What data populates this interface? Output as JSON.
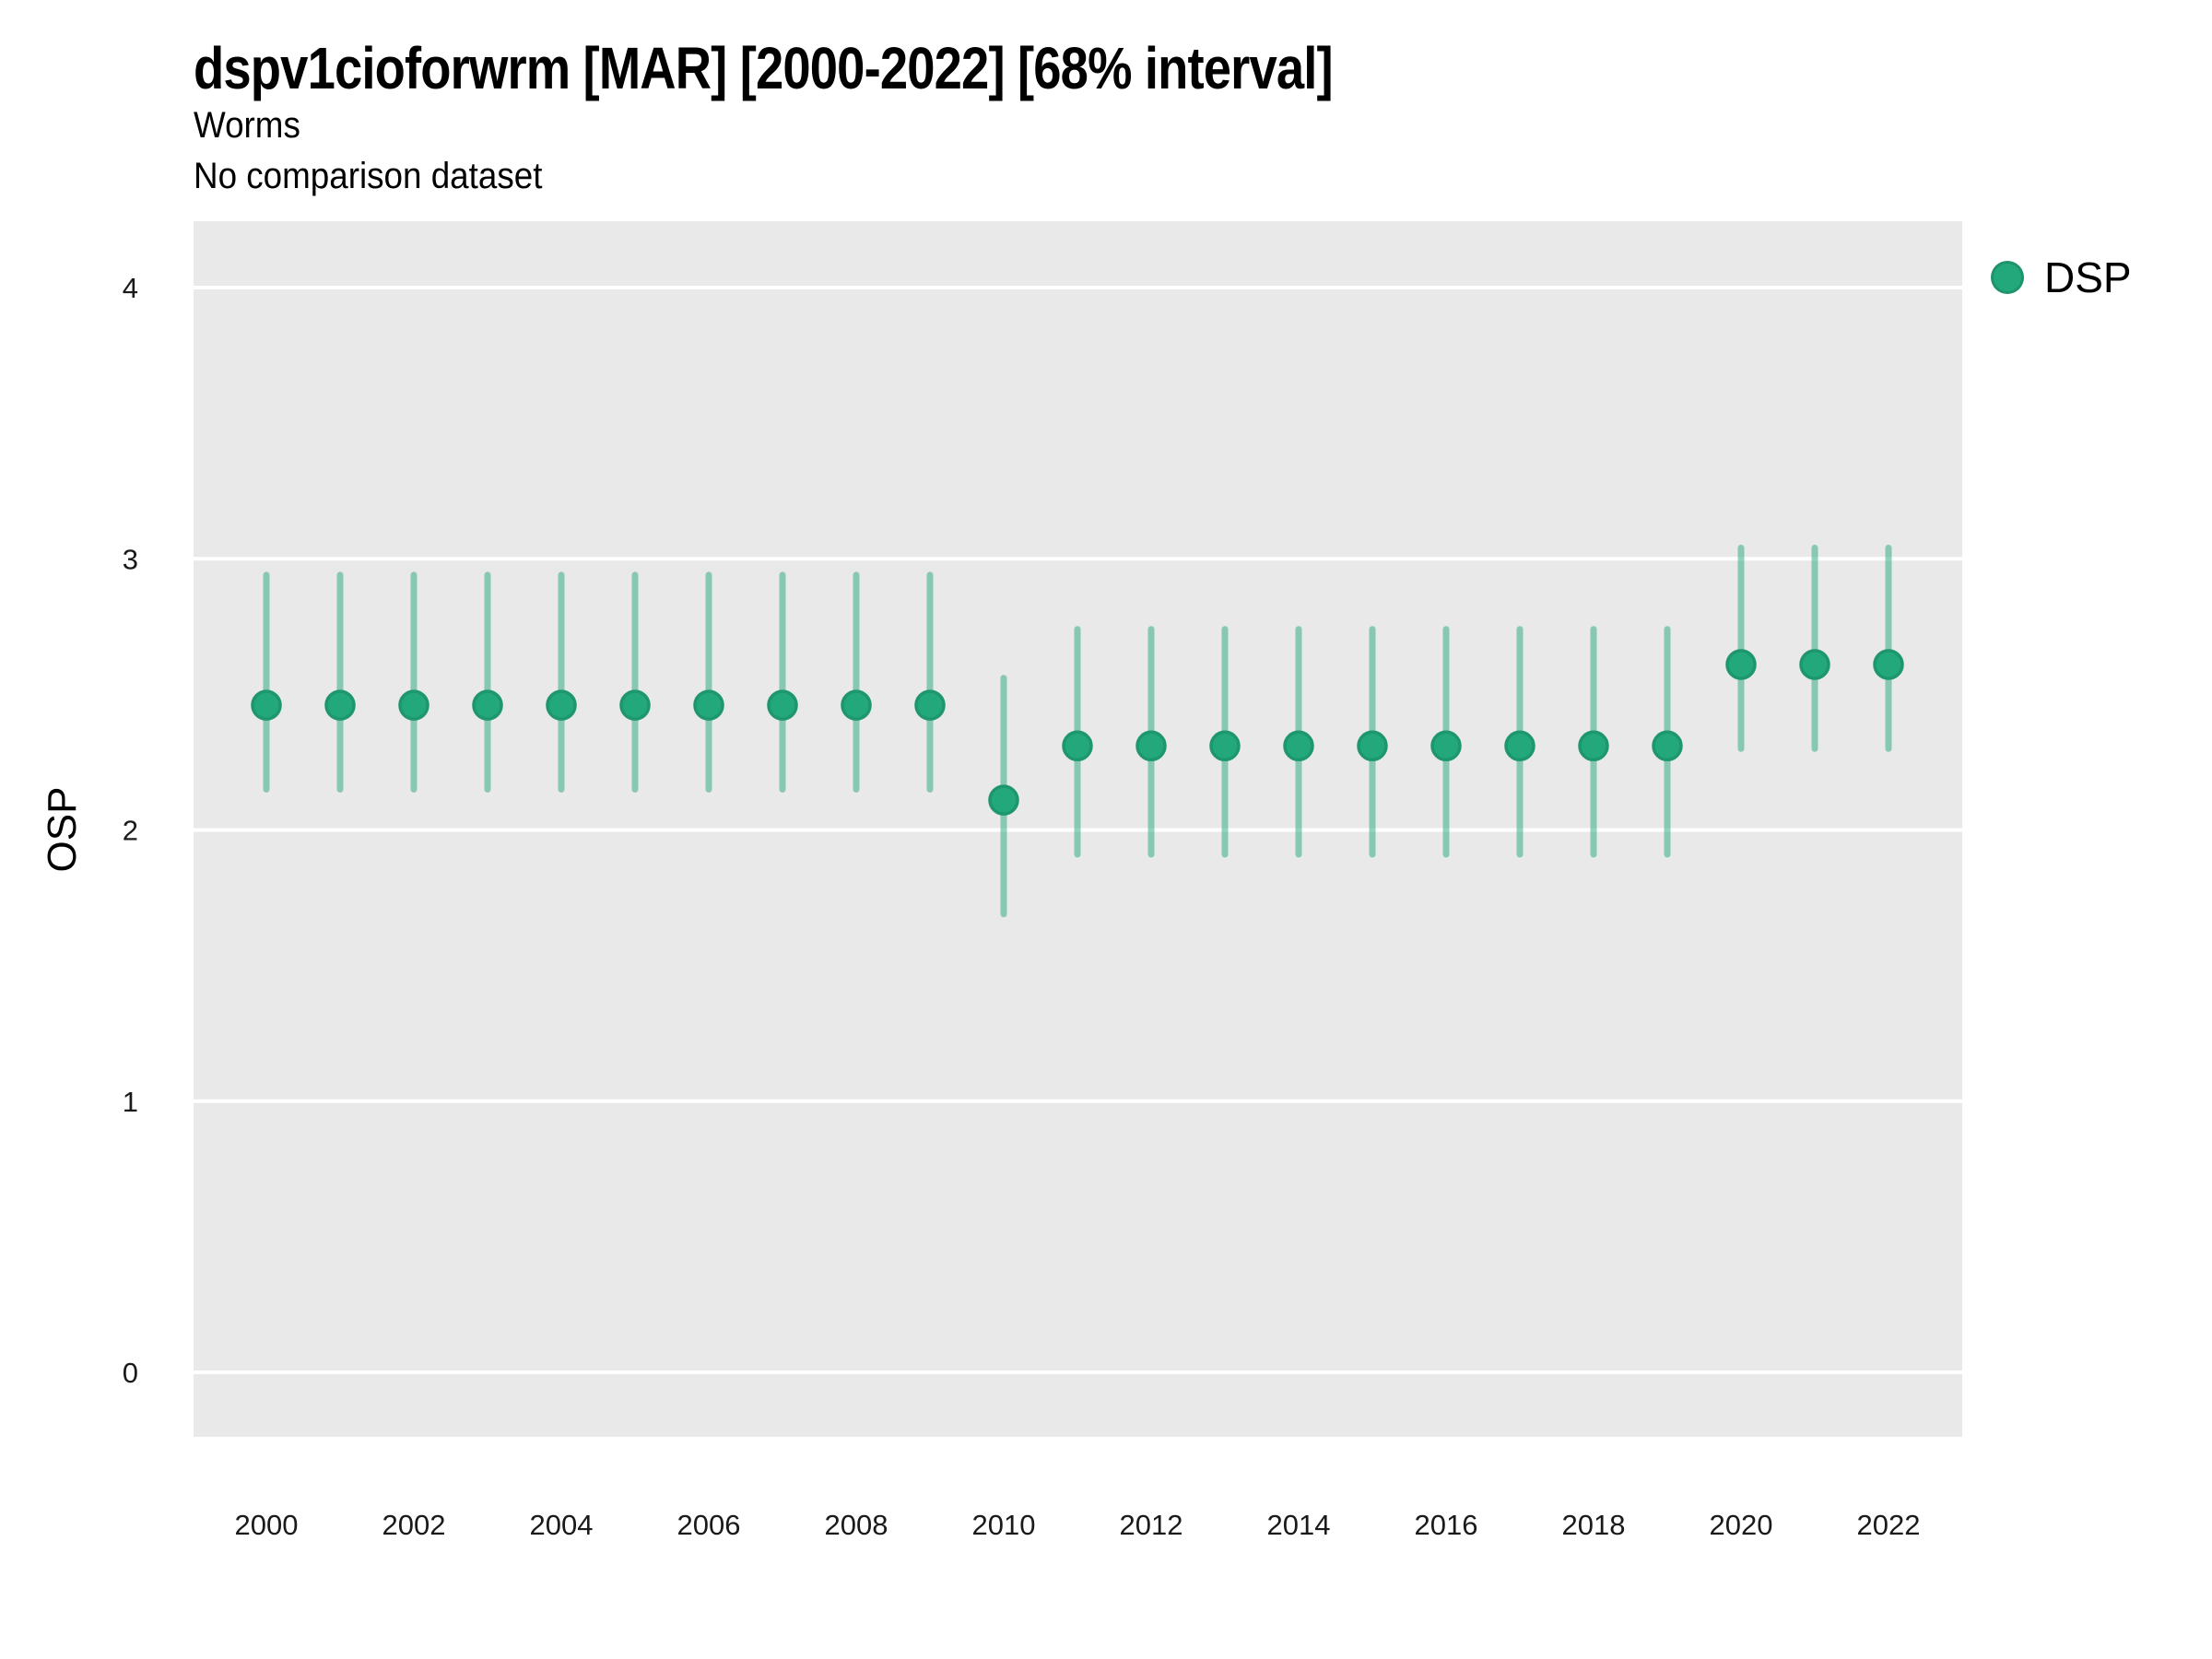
{
  "header": {
    "title": "dspv1cioforwrm [MAR] [2000-2022] [68% interval]",
    "subtitle": "Worms",
    "comparison_note": "No comparison dataset"
  },
  "legend": {
    "items": [
      {
        "label": "DSP",
        "color": "#23a87c"
      }
    ]
  },
  "chart_data": {
    "type": "pointrange",
    "title": "dspv1cioforwrm [MAR] [2000-2022] [68% interval]",
    "subtitle": "Worms",
    "note": "No comparison dataset",
    "interval_level": "68%",
    "xlabel": "",
    "ylabel": "OSP",
    "x": [
      2000,
      2001,
      2002,
      2003,
      2004,
      2005,
      2006,
      2007,
      2008,
      2009,
      2010,
      2011,
      2012,
      2013,
      2014,
      2015,
      2016,
      2017,
      2018,
      2019,
      2020,
      2021,
      2022
    ],
    "xticks": [
      2000,
      2002,
      2004,
      2006,
      2008,
      2010,
      2012,
      2014,
      2016,
      2018,
      2020,
      2022
    ],
    "yticks": [
      0,
      1,
      2,
      3,
      4
    ],
    "ylim": [
      -0.25,
      4.25
    ],
    "grid": "major-horizontal",
    "legend_position": "top-right",
    "series": [
      {
        "name": "DSP",
        "means": [
          2.46,
          2.46,
          2.46,
          2.46,
          2.46,
          2.46,
          2.46,
          2.46,
          2.46,
          2.46,
          2.11,
          2.31,
          2.31,
          2.31,
          2.31,
          2.31,
          2.31,
          2.31,
          2.31,
          2.31,
          2.61,
          2.61,
          2.61
        ],
        "lower": [
          2.15,
          2.15,
          2.15,
          2.15,
          2.15,
          2.15,
          2.15,
          2.15,
          2.15,
          2.15,
          1.69,
          1.91,
          1.91,
          1.91,
          1.91,
          1.91,
          1.91,
          1.91,
          1.91,
          1.91,
          2.3,
          2.3,
          2.3
        ],
        "upper": [
          2.94,
          2.94,
          2.94,
          2.94,
          2.94,
          2.94,
          2.94,
          2.94,
          2.94,
          2.94,
          2.56,
          2.74,
          2.74,
          2.74,
          2.74,
          2.74,
          2.74,
          2.74,
          2.74,
          2.74,
          3.04,
          3.04,
          3.04
        ]
      }
    ],
    "colors": {
      "point_fill": "#23a87c",
      "point_stroke": "#1e9670",
      "interval": "rgba(35,168,124,0.5)",
      "panel_background": "#e9e9e9",
      "gridline": "#ffffff",
      "tick_text": "#1a1a1a"
    }
  }
}
